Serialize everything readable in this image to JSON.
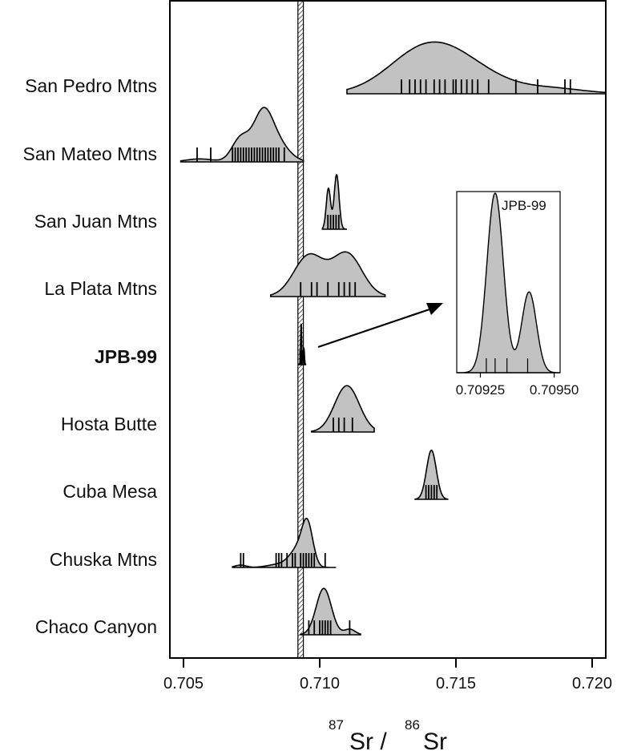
{
  "chart_data": {
    "type": "density-ridge",
    "xlabel": {
      "sup1": "87",
      "base1": "Sr /",
      "sup2": "86",
      "base2": "Sr"
    },
    "xlim": [
      0.7045,
      0.7205
    ],
    "x_ticks": [
      "0.705",
      "0.710",
      "0.715",
      "0.720"
    ],
    "x_tick_values": [
      0.705,
      0.71,
      0.715,
      0.72
    ],
    "reference_band": {
      "center": 0.7093,
      "width": 0.0002
    },
    "series": [
      {
        "name": "San Pedro Mtns",
        "bold": false,
        "range": [
          0.711,
          0.7205
        ],
        "scale": 0.95,
        "peaks": [
          {
            "mu": 0.7137,
            "sd": 0.0013,
            "w": 1.0
          },
          {
            "mu": 0.7152,
            "sd": 0.0014,
            "w": 0.72
          },
          {
            "mu": 0.7185,
            "sd": 0.0012,
            "w": 0.15
          }
        ],
        "samples": [
          0.713,
          0.7133,
          0.7135,
          0.7137,
          0.7139,
          0.7142,
          0.7144,
          0.7146,
          0.7149,
          0.715,
          0.7152,
          0.7154,
          0.7156,
          0.7158,
          0.7162,
          0.7172,
          0.718,
          0.719,
          0.7192
        ]
      },
      {
        "name": "San Mateo Mtns",
        "bold": false,
        "range": [
          0.7049,
          0.7094
        ],
        "scale": 1.0,
        "peaks": [
          {
            "mu": 0.7071,
            "sd": 0.00032,
            "w": 0.55
          },
          {
            "mu": 0.7079,
            "sd": 0.00035,
            "w": 1.0
          },
          {
            "mu": 0.7084,
            "sd": 0.00045,
            "w": 0.45
          },
          {
            "mu": 0.7056,
            "sd": 0.0005,
            "w": 0.07
          }
        ],
        "samples": [
          0.7055,
          0.706,
          0.7068,
          0.7069,
          0.707,
          0.7071,
          0.7072,
          0.7073,
          0.7074,
          0.7075,
          0.7076,
          0.7077,
          0.7078,
          0.7079,
          0.708,
          0.7081,
          0.7082,
          0.7083,
          0.7084,
          0.7085,
          0.7087
        ]
      },
      {
        "name": "San Juan Mtns",
        "bold": false,
        "range": [
          0.7101,
          0.711
        ],
        "scale": 1.0,
        "peaks": [
          {
            "mu": 0.71032,
            "sd": 8e-05,
            "w": 0.75
          },
          {
            "mu": 0.71062,
            "sd": 9e-05,
            "w": 1.0
          }
        ],
        "samples": [
          0.7103,
          0.7104,
          0.7105,
          0.7106,
          0.7107
        ]
      },
      {
        "name": "La Plata Mtns",
        "bold": false,
        "range": [
          0.7082,
          0.7124
        ],
        "scale": 0.82,
        "peaks": [
          {
            "mu": 0.7096,
            "sd": 0.00055,
            "w": 1.0
          },
          {
            "mu": 0.711,
            "sd": 0.00055,
            "w": 1.05
          }
        ],
        "samples": [
          0.7093,
          0.7097,
          0.7099,
          0.7103,
          0.7107,
          0.7109,
          0.7111,
          0.7113
        ]
      },
      {
        "name": "JPB-99",
        "bold": true,
        "range": [
          0.7092,
          0.7095
        ],
        "scale": 0.75,
        "peaks": [
          {
            "mu": 0.70932,
            "sd": 2e-05,
            "w": 1.0
          },
          {
            "mu": 0.70942,
            "sd": 2e-05,
            "w": 0.4
          }
        ],
        "samples": [
          0.70928,
          0.70932,
          0.70936,
          0.70942
        ]
      },
      {
        "name": "Hosta Butte",
        "bold": false,
        "range": [
          0.7097,
          0.712
        ],
        "scale": 0.85,
        "peaks": [
          {
            "mu": 0.711,
            "sd": 0.00045,
            "w": 1.0
          }
        ],
        "samples": [
          0.7105,
          0.7107,
          0.7109,
          0.7112
        ]
      },
      {
        "name": "Cuba Mesa",
        "bold": false,
        "range": [
          0.7135,
          0.7147
        ],
        "scale": 0.9,
        "peaks": [
          {
            "mu": 0.7141,
            "sd": 0.00018,
            "w": 1.0
          }
        ],
        "samples": [
          0.7139,
          0.714,
          0.7141,
          0.7142,
          0.7143
        ]
      },
      {
        "name": "Chuska Mtns",
        "bold": false,
        "range": [
          0.7068,
          0.7106
        ],
        "scale": 0.9,
        "peaks": [
          {
            "mu": 0.70955,
            "sd": 0.0002,
            "w": 1.0
          },
          {
            "mu": 0.7092,
            "sd": 0.0003,
            "w": 0.45
          },
          {
            "mu": 0.7085,
            "sd": 0.0004,
            "w": 0.08
          },
          {
            "mu": 0.7071,
            "sd": 0.0002,
            "w": 0.06
          }
        ],
        "samples": [
          0.7071,
          0.7072,
          0.7084,
          0.7085,
          0.7086,
          0.7088,
          0.709,
          0.7091,
          0.7093,
          0.7094,
          0.7095,
          0.7096,
          0.7097,
          0.7098,
          0.7102
        ]
      },
      {
        "name": "Chaco Canyon",
        "bold": false,
        "range": [
          0.7093,
          0.7115
        ],
        "scale": 0.85,
        "peaks": [
          {
            "mu": 0.71015,
            "sd": 0.00028,
            "w": 1.0
          },
          {
            "mu": 0.7111,
            "sd": 0.0002,
            "w": 0.12
          }
        ],
        "samples": [
          0.7096,
          0.7098,
          0.71,
          0.7101,
          0.7102,
          0.7103,
          0.7104,
          0.7111
        ]
      }
    ],
    "inset": {
      "title": "JPB-99",
      "xlim": [
        0.70917,
        0.70952
      ],
      "x_ticks": [
        "0.70925",
        "0.70950"
      ],
      "x_tick_values": [
        0.70925,
        0.7095
      ],
      "peaks": [
        {
          "mu": 0.7093,
          "sd": 2.8e-05,
          "w": 1.0
        },
        {
          "mu": 0.709415,
          "sd": 2.5e-05,
          "w": 0.45
        }
      ],
      "samples": [
        0.70927,
        0.7093,
        0.70934,
        0.70941
      ]
    }
  }
}
